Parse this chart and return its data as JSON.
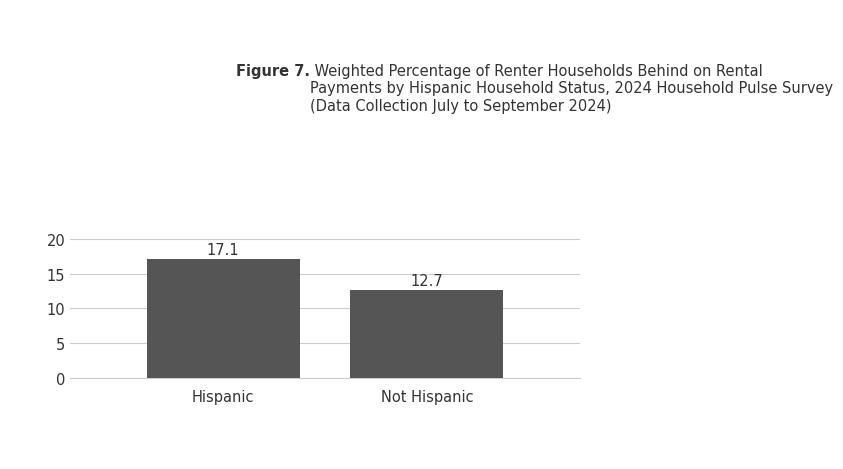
{
  "categories": [
    "Hispanic",
    "Not Hispanic"
  ],
  "values": [
    17.1,
    12.7
  ],
  "bar_color": "#555555",
  "bar_width": 0.3,
  "ylim": [
    0,
    22
  ],
  "yticks": [
    0,
    5,
    10,
    15,
    20
  ],
  "title_bold": "Figure 7.",
  "title_normal": " Weighted Percentage of Renter Households Behind on Rental\nPayments by Hispanic Household Status, 2024 Household Pulse Survey\n(Data Collection July to September 2024)",
  "value_label_fontsize": 10.5,
  "tick_label_fontsize": 10.5,
  "background_color": "#ffffff",
  "plot_bg_color": "#ffffff",
  "outer_bg_top": "#e8e8e8",
  "outer_bg_bottom": "#e8e8e8",
  "grid_color": "#cccccc",
  "title_fontsize": 10.5,
  "title_color": "#333333"
}
